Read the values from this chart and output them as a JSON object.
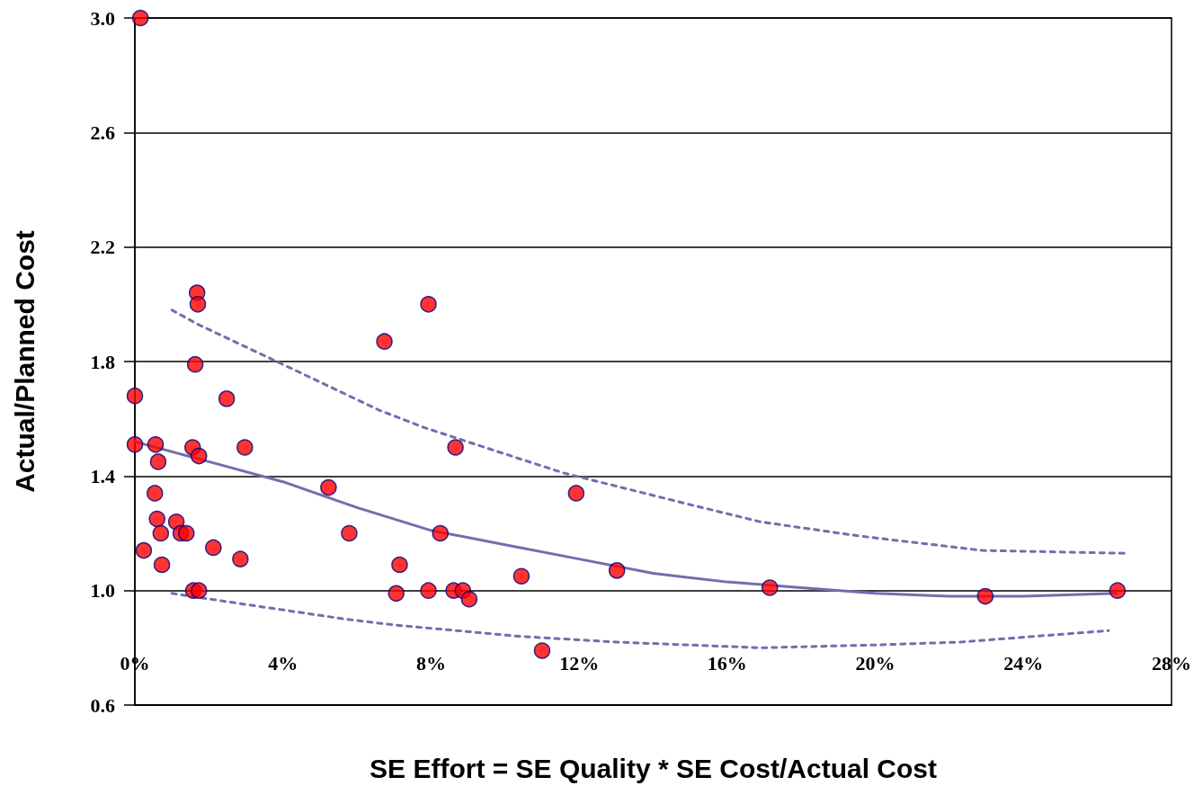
{
  "chart_data": {
    "type": "scatter",
    "xlabel": "SE Effort = SE Quality * SE Cost/Actual Cost",
    "ylabel": "Actual/Planned Cost",
    "xlim": [
      0,
      28
    ],
    "ylim": [
      0.6,
      3.0
    ],
    "xticks": [
      {
        "value": 0,
        "label": "0%"
      },
      {
        "value": 4,
        "label": "4%"
      },
      {
        "value": 8,
        "label": "8%"
      },
      {
        "value": 12,
        "label": "12%"
      },
      {
        "value": 16,
        "label": "16%"
      },
      {
        "value": 20,
        "label": "20%"
      },
      {
        "value": 24,
        "label": "24%"
      },
      {
        "value": 28,
        "label": "28%"
      }
    ],
    "yticks": [
      {
        "value": 0.6,
        "label": "0.6"
      },
      {
        "value": 1.0,
        "label": "1.0"
      },
      {
        "value": 1.4,
        "label": "1.4"
      },
      {
        "value": 1.8,
        "label": "1.8"
      },
      {
        "value": 2.2,
        "label": "2.2"
      },
      {
        "value": 2.6,
        "label": "2.6"
      },
      {
        "value": 3.0,
        "label": "3.0"
      }
    ],
    "grid": "y",
    "marker": "circle",
    "series": [
      {
        "color": "#ff0000",
        "x": [
          0.15,
          0,
          0,
          0.56,
          0.63,
          0.54,
          0.6,
          0.7,
          0.24,
          0.73,
          1.12,
          1.24,
          1.39,
          2.12,
          2.85,
          1.68,
          1.7,
          1.63,
          2.48,
          1.56,
          1.73,
          2.97,
          1.58,
          1.73,
          6.74,
          7.93,
          8.66,
          5.23,
          5.79,
          8.25,
          7.15,
          7.06,
          7.93,
          8.61,
          8.86,
          9.03,
          10.44,
          11.92,
          13.02,
          17.15,
          22.97,
          26.54,
          11.0
        ],
        "values": [
          3.0,
          1.68,
          1.51,
          1.51,
          1.45,
          1.34,
          1.25,
          1.2,
          1.14,
          1.09,
          1.24,
          1.2,
          1.2,
          1.15,
          1.11,
          2.04,
          2.0,
          1.79,
          1.67,
          1.5,
          1.47,
          1.5,
          1.0,
          1.0,
          1.87,
          2.0,
          1.5,
          1.36,
          1.2,
          1.2,
          1.09,
          0.99,
          1.0,
          1.0,
          1.0,
          0.97,
          1.05,
          1.34,
          1.07,
          1.01,
          0.98,
          1.0,
          0.79
        ]
      },
      {
        "type": "line",
        "color": "#6f6fae",
        "marker": "none",
        "line_style": "solid",
        "x": [
          0,
          2,
          4,
          6,
          8,
          10,
          12,
          14,
          16,
          18,
          20,
          22,
          24,
          26.5
        ],
        "values": [
          1.52,
          1.45,
          1.38,
          1.29,
          1.21,
          1.16,
          1.11,
          1.06,
          1.03,
          1.01,
          0.99,
          0.98,
          0.98,
          0.99
        ]
      },
      {
        "type": "line",
        "color": "#6f6fae",
        "marker": "none",
        "line_style": "dashed",
        "x": [
          1.0,
          1.7,
          4.16,
          6.6,
          7.8,
          10.4,
          11.6,
          15.0,
          16.9,
          19.6,
          22.9,
          26.8
        ],
        "values": [
          1.98,
          1.93,
          1.78,
          1.63,
          1.57,
          1.46,
          1.41,
          1.3,
          1.24,
          1.19,
          1.14,
          1.13
        ]
      },
      {
        "type": "line",
        "color": "#6f6fae",
        "marker": "none",
        "line_style": "dashed",
        "x": [
          1.0,
          3.6,
          5.7,
          7.0,
          10.4,
          13.0,
          16.9,
          20.0,
          22.3,
          26.3
        ],
        "values": [
          0.99,
          0.94,
          0.9,
          0.88,
          0.84,
          0.82,
          0.8,
          0.81,
          0.82,
          0.86
        ]
      }
    ]
  }
}
